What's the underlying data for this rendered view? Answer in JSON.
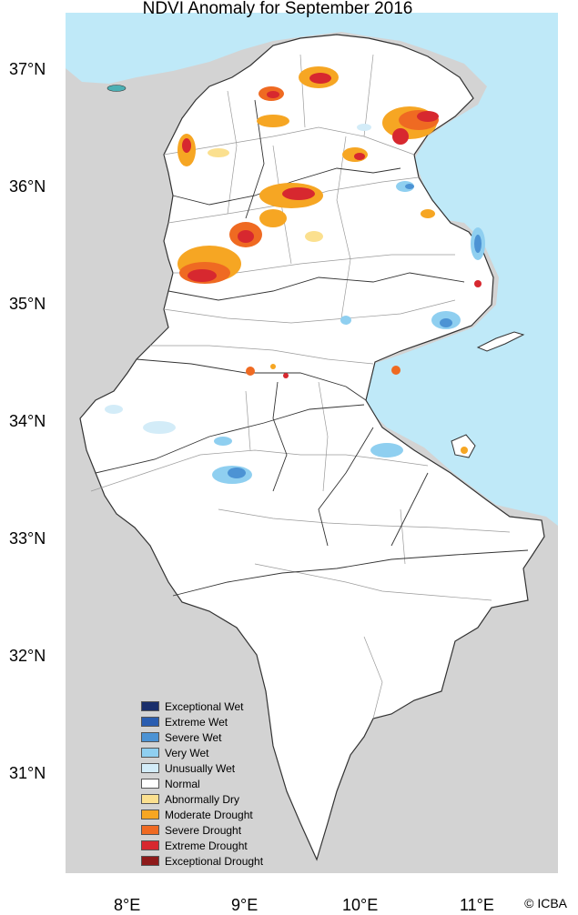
{
  "title": "NDVI Anomaly for September 2016",
  "copyright": "© ICBA",
  "lat_labels": [
    "37°N",
    "36°N",
    "35°N",
    "34°N",
    "33°N",
    "32°N",
    "31°N"
  ],
  "lon_labels": [
    "8°E",
    "9°E",
    "10°E",
    "11°E"
  ],
  "colors": {
    "sea": "#bfe9f8",
    "land_outside": "#d3d3d3",
    "land": "#ffffff",
    "border": "#333333",
    "admin": "#9a9a9a"
  },
  "legend": [
    {
      "label": "Exceptional Wet",
      "color": "#1a2f6b"
    },
    {
      "label": "Extreme Wet",
      "color": "#2a5db0"
    },
    {
      "label": "Severe Wet",
      "color": "#4c93d4"
    },
    {
      "label": "Very Wet",
      "color": "#8fcff0"
    },
    {
      "label": "Unusually Wet",
      "color": "#d3ecf8"
    },
    {
      "label": "Normal",
      "color": "#ffffff"
    },
    {
      "label": "Abnormally Dry",
      "color": "#fbe08f"
    },
    {
      "label": "Moderate Drought",
      "color": "#f6a623"
    },
    {
      "label": "Severe Drought",
      "color": "#ef6a22"
    },
    {
      "label": "Extreme Drought",
      "color": "#d7282f"
    },
    {
      "label": "Exceptional Drought",
      "color": "#8e1a1a"
    }
  ]
}
